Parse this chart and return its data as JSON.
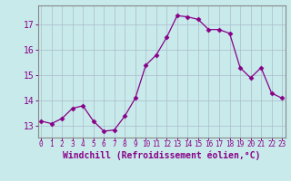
{
  "x": [
    0,
    1,
    2,
    3,
    4,
    5,
    6,
    7,
    8,
    9,
    10,
    11,
    12,
    13,
    14,
    15,
    16,
    17,
    18,
    19,
    20,
    21,
    22,
    23
  ],
  "y": [
    13.2,
    13.1,
    13.3,
    13.7,
    13.8,
    13.2,
    12.8,
    12.85,
    13.4,
    14.1,
    15.4,
    15.8,
    16.5,
    17.35,
    17.3,
    17.2,
    16.8,
    16.8,
    16.65,
    15.3,
    14.9,
    15.3,
    14.3,
    14.1
  ],
  "line_color": "#880088",
  "marker": "D",
  "marker_size": 2.5,
  "bg_color": "#c8eaea",
  "grid_color": "#aabbcc",
  "xlabel": "Windchill (Refroidissement éolien,°C)",
  "tick_color": "#880088",
  "ylim": [
    12.55,
    17.75
  ],
  "yticks": [
    13,
    14,
    15,
    16,
    17
  ],
  "xticks": [
    0,
    1,
    2,
    3,
    4,
    5,
    6,
    7,
    8,
    9,
    10,
    11,
    12,
    13,
    14,
    15,
    16,
    17,
    18,
    19,
    20,
    21,
    22,
    23
  ],
  "xlim": [
    -0.3,
    23.3
  ],
  "spine_color": "#888888",
  "xlabel_fontsize": 7.0,
  "ytick_fontsize": 7.0,
  "xtick_fontsize": 5.5
}
